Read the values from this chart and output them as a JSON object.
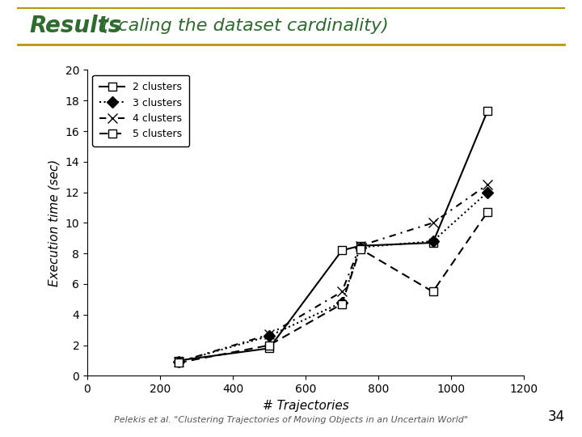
{
  "title_bold": "Results",
  "title_normal": " (scaling the dataset cardinality)",
  "title_color_bold": "#2E6B2E",
  "title_color_normal": "#2E6B2E",
  "xlabel": "# Trajectories",
  "ylabel": "Execution time (sec)",
  "xlim": [
    0,
    1200
  ],
  "ylim": [
    0,
    20
  ],
  "xticks": [
    0,
    200,
    400,
    600,
    800,
    1000,
    1200
  ],
  "yticks": [
    0,
    2,
    4,
    6,
    8,
    10,
    12,
    14,
    16,
    18,
    20
  ],
  "background_color": "#ffffff",
  "series": [
    {
      "label": "2 clusters",
      "x": [
        250,
        500,
        700,
        750,
        950,
        1100
      ],
      "y": [
        1.0,
        1.8,
        8.2,
        8.5,
        8.7,
        17.3
      ],
      "linestyle": "-",
      "marker": "s",
      "markersize": 7,
      "color": "#000000",
      "linewidth": 1.5,
      "markerfacecolor": "white",
      "dashes": []
    },
    {
      "label": "3 clusters",
      "x": [
        250,
        500,
        700,
        750,
        950,
        1100
      ],
      "y": [
        0.9,
        2.6,
        4.8,
        8.4,
        8.8,
        12.0
      ],
      "linestyle": ":",
      "marker": "D",
      "markersize": 7,
      "color": "#000000",
      "linewidth": 1.5,
      "markerfacecolor": "#000000",
      "dashes": [
        2,
        2
      ]
    },
    {
      "label": "4 clusters",
      "x": [
        250,
        500,
        700,
        750,
        950,
        1100
      ],
      "y": [
        0.9,
        2.7,
        5.5,
        8.5,
        10.0,
        12.5
      ],
      "linestyle": "--",
      "marker": "x",
      "markersize": 9,
      "color": "#000000",
      "linewidth": 1.5,
      "markerfacecolor": "#000000",
      "dashes": [
        5,
        3,
        1,
        3
      ]
    },
    {
      "label": "5 clusters",
      "x": [
        250,
        500,
        700,
        750,
        950,
        1100
      ],
      "y": [
        0.85,
        2.0,
        4.7,
        8.3,
        5.5,
        10.7
      ],
      "linestyle": "--",
      "marker": "s",
      "markersize": 7,
      "color": "#000000",
      "linewidth": 1.5,
      "markerfacecolor": "white",
      "dashes": [
        5,
        3
      ]
    }
  ],
  "footer_text": "Pelekis et al. \"Clustering Trajectories of Moving Objects in an Uncertain World\"",
  "page_number": "34",
  "header_line_color": "#B8960C",
  "footer_color": "#555555"
}
